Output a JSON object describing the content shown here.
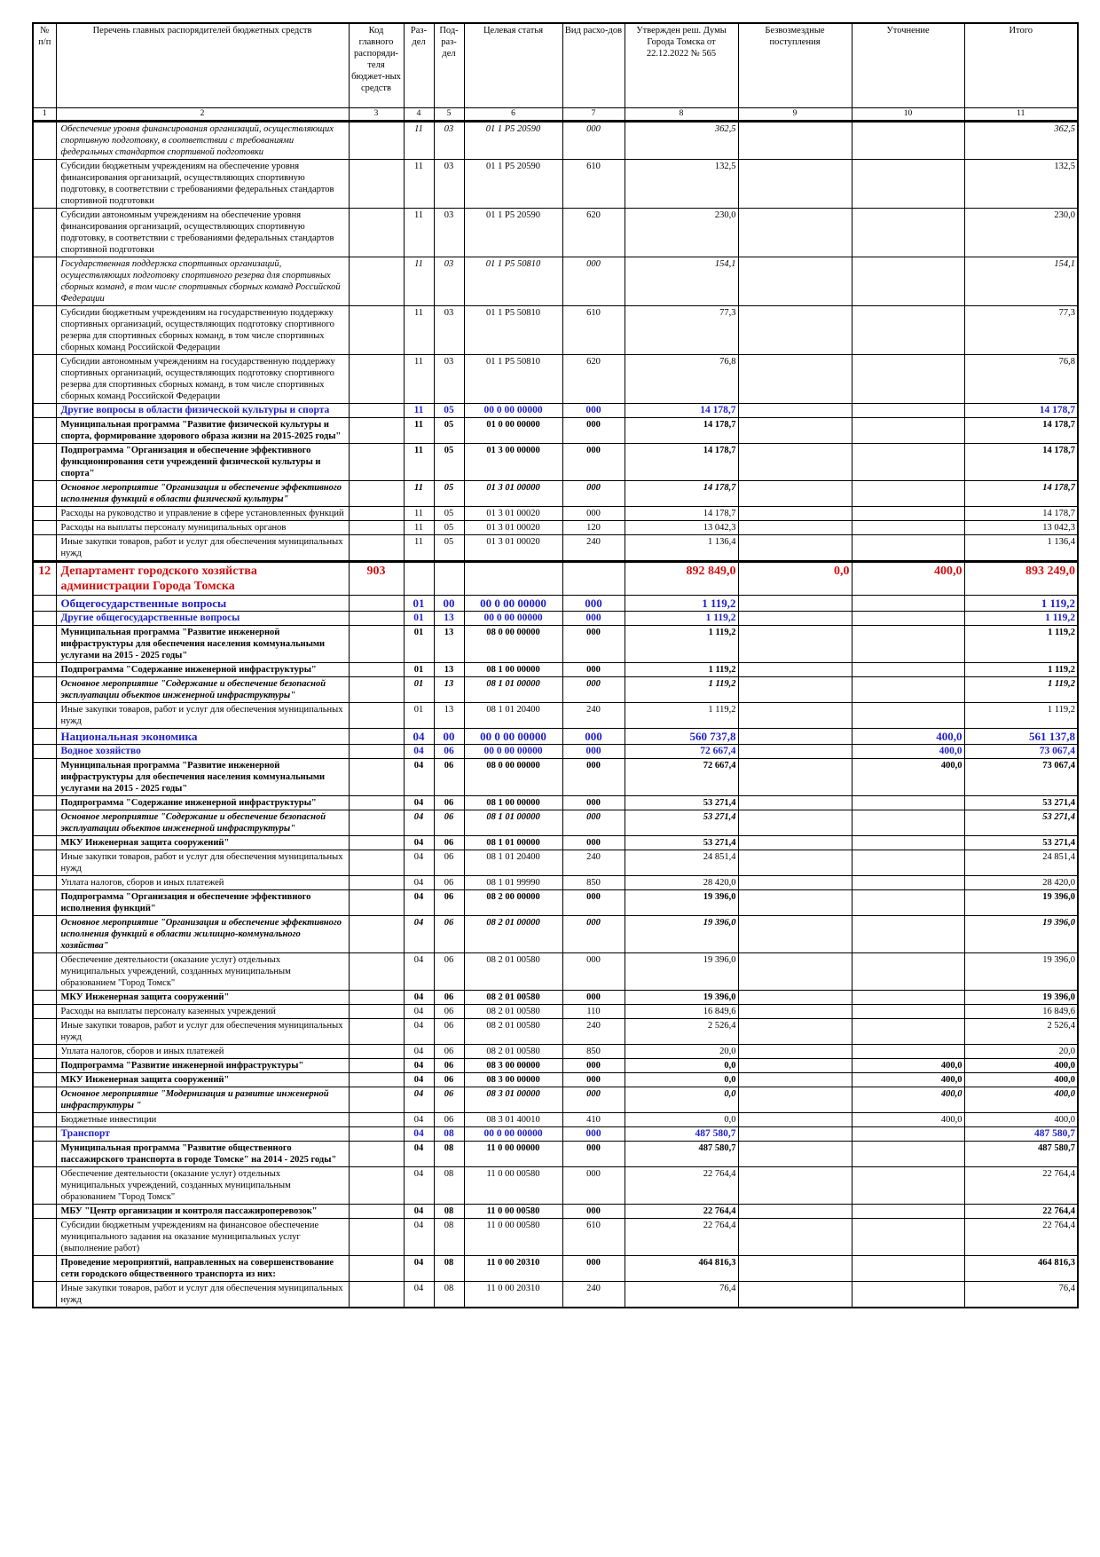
{
  "table": {
    "header": [
      "№ п/п",
      "Перечень главных распорядителей бюджетных средств",
      "Код главного распоряди-теля бюджет-ных средств",
      "Раз-дел",
      "Под-раз-дел",
      "Целевая статья",
      "Вид расхо-дов",
      "Утвержден реш. Думы Города Томска от 22.12.2022 № 565",
      "Безвозмездные поступления",
      "Уточнение",
      "Итого"
    ],
    "numbers": [
      "1",
      "2",
      "3",
      "4",
      "5",
      "6",
      "7",
      "8",
      "9",
      "10",
      "11"
    ],
    "rows": [
      {
        "style": "italic",
        "cells": [
          null,
          "Обеспечение уровня финансирования организаций, осуществляющих спортивную подготовку, в соответствии с требованиями федеральных стандартов спортивной подготовки",
          null,
          "11",
          "03",
          "01 1 P5 20590",
          "000",
          "362,5",
          null,
          null,
          "362,5"
        ]
      },
      {
        "cells": [
          null,
          "Субсидии бюджетным учреждениям на обеспечение уровня финансирования организаций, осуществляющих спортивную подготовку, в соответствии с требованиями федеральных стандартов спортивной подготовки",
          null,
          "11",
          "03",
          "01 1 P5 20590",
          "610",
          "132,5",
          null,
          null,
          "132,5"
        ]
      },
      {
        "cells": [
          null,
          "Субсидии автономным учреждениям на обеспечение уровня финансирования организаций, осуществляющих спортивную подготовку, в соответствии с требованиями федеральных стандартов спортивной подготовки",
          null,
          "11",
          "03",
          "01 1 P5 20590",
          "620",
          "230,0",
          null,
          null,
          "230,0"
        ]
      },
      {
        "style": "italic",
        "cells": [
          null,
          "Государственная поддержка спортивных организаций, осуществляющих подготовку спортивного резерва для спортивных сборных команд, в том числе спортивных сборных команд Российской Федерации",
          null,
          "11",
          "03",
          "01 1 P5 50810",
          "000",
          "154,1",
          null,
          null,
          "154,1"
        ]
      },
      {
        "cells": [
          null,
          "Субсидии бюджетным учреждениям на государственную поддержку спортивных организаций, осуществляющих подготовку спортивного резерва для спортивных сборных команд, в том числе спортивных сборных команд Российской Федерации",
          null,
          "11",
          "03",
          "01 1 P5 50810",
          "610",
          "77,3",
          null,
          null,
          "77,3"
        ]
      },
      {
        "cells": [
          null,
          "Субсидии автономным учреждениям на государственную поддержку спортивных организаций, осуществляющих подготовку спортивного резерва для спортивных сборных команд, в том числе спортивных сборных команд Российской Федерации",
          null,
          "11",
          "03",
          "01 1 P5 50810",
          "620",
          "76,8",
          null,
          null,
          "76,8"
        ]
      },
      {
        "style": "blue",
        "cells": [
          null,
          "Другие вопросы в области физической культуры и спорта",
          null,
          "11",
          "05",
          "00 0 00 00000",
          "000",
          "14 178,7",
          null,
          null,
          "14 178,7"
        ]
      },
      {
        "style": "bold",
        "cells": [
          null,
          "Муниципальная программа \"Развитие физической культуры и спорта, формирование здорового образа жизни на 2015-2025 годы\"",
          null,
          "11",
          "05",
          "01 0 00 00000",
          "000",
          "14 178,7",
          null,
          null,
          "14 178,7"
        ]
      },
      {
        "style": "bold",
        "cells": [
          null,
          "Подпрограмма \"Организация и обеспечение эффективного функционирования сети учреждений физической культуры и спорта\"",
          null,
          "11",
          "05",
          "01 3 00 00000",
          "000",
          "14 178,7",
          null,
          null,
          "14 178,7"
        ]
      },
      {
        "style": "bold-italic",
        "cells": [
          null,
          "Основное мероприятие \"Организация и обеспечение эффективного исполнения функций в области физической культуры\"",
          null,
          "11",
          "05",
          "01 3 01 00000",
          "000",
          "14 178,7",
          null,
          null,
          "14 178,7"
        ]
      },
      {
        "cells": [
          null,
          "Расходы на руководство и управление в сфере установленных функций",
          null,
          "11",
          "05",
          "01 3 01 00020",
          "000",
          "14 178,7",
          null,
          null,
          "14 178,7"
        ]
      },
      {
        "cells": [
          null,
          "Расходы на выплаты персоналу муниципальных органов",
          null,
          "11",
          "05",
          "01 3 01 00020",
          "120",
          "13 042,3",
          null,
          null,
          "13 042,3"
        ]
      },
      {
        "cells": [
          null,
          "Иные закупки товаров, работ и услуг для обеспечения муниципальных нужд",
          null,
          "11",
          "05",
          "01 3 01 00020",
          "240",
          "1 136,4",
          null,
          null,
          "1 136,4"
        ]
      },
      {
        "style": "red",
        "cells": [
          "12",
          "Департамент городского хозяйства администрации Города Томска",
          "903",
          null,
          null,
          null,
          null,
          "892 849,0",
          "0,0",
          "400,0",
          "893 249,0"
        ]
      },
      {
        "style": "blue-large",
        "cells": [
          null,
          "Общегосударственные вопросы",
          null,
          "01",
          "00",
          "00 0 00 00000",
          "000",
          "1 119,2",
          null,
          null,
          "1 119,2"
        ]
      },
      {
        "style": "blue",
        "cells": [
          null,
          "Другие общегосударственные вопросы",
          null,
          "01",
          "13",
          "00 0 00 00000",
          "000",
          "1 119,2",
          null,
          null,
          "1 119,2"
        ]
      },
      {
        "style": "bold",
        "cells": [
          null,
          "Муниципальная программа \"Развитие инженерной инфраструктуры для обеспечения населения коммунальными услугами на 2015 - 2025 годы\"",
          null,
          "01",
          "13",
          "08 0 00 00000",
          "000",
          "1 119,2",
          null,
          null,
          "1 119,2"
        ]
      },
      {
        "style": "bold",
        "cells": [
          null,
          "Подпрограмма \"Содержание инженерной инфраструктуры\"",
          null,
          "01",
          "13",
          "08 1 00 00000",
          "000",
          "1 119,2",
          null,
          null,
          "1 119,2"
        ]
      },
      {
        "style": "bold-italic",
        "cells": [
          null,
          "Основное мероприятие \"Содержание и обеспечение безопасной эксплуатации объектов инженерной инфраструктуры\"",
          null,
          "01",
          "13",
          "08 1 01 00000",
          "000",
          "1 119,2",
          null,
          null,
          "1 119,2"
        ]
      },
      {
        "cells": [
          null,
          "Иные закупки товаров, работ и услуг для обеспечения муниципальных нужд",
          null,
          "01",
          "13",
          "08 1 01 20400",
          "240",
          "1 119,2",
          null,
          null,
          "1 119,2"
        ]
      },
      {
        "style": "blue-large",
        "cells": [
          null,
          "Национальная экономика",
          null,
          "04",
          "00",
          "00 0 00 00000",
          "000",
          "560 737,8",
          null,
          "400,0",
          "561 137,8"
        ]
      },
      {
        "style": "blue",
        "cells": [
          null,
          "Водное хозяйство",
          null,
          "04",
          "06",
          "00 0 00 00000",
          "000",
          "72 667,4",
          null,
          "400,0",
          "73 067,4"
        ]
      },
      {
        "style": "bold",
        "cells": [
          null,
          "Муниципальная программа \"Развитие инженерной инфраструктуры для обеспечения населения коммунальными услугами на 2015 - 2025 годы\"",
          null,
          "04",
          "06",
          "08 0 00 00000",
          "000",
          "72 667,4",
          null,
          "400,0",
          "73 067,4"
        ]
      },
      {
        "style": "bold",
        "cells": [
          null,
          "Подпрограмма \"Содержание инженерной инфраструктуры\"",
          null,
          "04",
          "06",
          "08 1 00 00000",
          "000",
          "53 271,4",
          null,
          null,
          "53 271,4"
        ]
      },
      {
        "style": "bold-italic",
        "cells": [
          null,
          "Основное мероприятие \"Содержание и обеспечение безопасной эксплуатации объектов инженерной инфраструктуры\"",
          null,
          "04",
          "06",
          "08 1 01 00000",
          "000",
          "53 271,4",
          null,
          null,
          "53 271,4"
        ]
      },
      {
        "style": "bold",
        "cells": [
          null,
          "МКУ Инженерная защита сооружений\"",
          null,
          "04",
          "06",
          "08 1 01 00000",
          "000",
          "53 271,4",
          null,
          null,
          "53 271,4"
        ]
      },
      {
        "cells": [
          null,
          "Иные закупки товаров, работ и услуг для обеспечения муниципальных нужд",
          null,
          "04",
          "06",
          "08 1 01 20400",
          "240",
          "24 851,4",
          null,
          null,
          "24 851,4"
        ]
      },
      {
        "cells": [
          null,
          "Уплата налогов, сборов и иных платежей",
          null,
          "04",
          "06",
          "08 1 01 99990",
          "850",
          "28 420,0",
          null,
          null,
          "28 420,0"
        ]
      },
      {
        "style": "bold",
        "cells": [
          null,
          "Подпрограмма \"Организация и обеспечение эффективного исполнения функций\"",
          null,
          "04",
          "06",
          "08 2 00 00000",
          "000",
          "19 396,0",
          null,
          null,
          "19 396,0"
        ]
      },
      {
        "style": "bold-italic",
        "cells": [
          null,
          "Основное мероприятие \"Организация и обеспечение эффективного исполнения функций в области жилищно-коммунального хозяйства\"",
          null,
          "04",
          "06",
          "08 2 01 00000",
          "000",
          "19 396,0",
          null,
          null,
          "19 396,0"
        ]
      },
      {
        "cells": [
          null,
          "Обеспечение деятельности (оказание услуг) отдельных муниципальных учреждений, созданных муниципальным образованием \"Город Томск\"",
          null,
          "04",
          "06",
          "08 2 01 00580",
          "000",
          "19 396,0",
          null,
          null,
          "19 396,0"
        ]
      },
      {
        "style": "bold",
        "cells": [
          null,
          "МКУ Инженерная защита сооружений\"",
          null,
          "04",
          "06",
          "08 2 01 00580",
          "000",
          "19 396,0",
          null,
          null,
          "19 396,0"
        ]
      },
      {
        "cells": [
          null,
          "Расходы на выплаты персоналу казенных учреждений",
          null,
          "04",
          "06",
          "08 2 01 00580",
          "110",
          "16 849,6",
          null,
          null,
          "16 849,6"
        ]
      },
      {
        "cells": [
          null,
          "Иные закупки товаров, работ и услуг для обеспечения муниципальных нужд",
          null,
          "04",
          "06",
          "08 2 01 00580",
          "240",
          "2 526,4",
          null,
          null,
          "2 526,4"
        ]
      },
      {
        "cells": [
          null,
          "Уплата налогов, сборов и иных платежей",
          null,
          "04",
          "06",
          "08 2 01 00580",
          "850",
          "20,0",
          null,
          null,
          "20,0"
        ]
      },
      {
        "style": "bold",
        "cells": [
          null,
          "Подпрограмма \"Развитие инженерной инфраструктуры\"",
          null,
          "04",
          "06",
          "08 3 00 00000",
          "000",
          "0,0",
          null,
          "400,0",
          "400,0"
        ]
      },
      {
        "style": "bold",
        "cells": [
          null,
          "МКУ Инженерная защита сооружений\"",
          null,
          "04",
          "06",
          "08 3 00 00000",
          "000",
          "0,0",
          null,
          "400,0",
          "400,0"
        ]
      },
      {
        "style": "bold-italic",
        "cells": [
          null,
          "Основное мероприятие \"Модернизация и развитие инженерной инфраструктуры \"",
          null,
          "04",
          "06",
          "08 3 01 00000",
          "000",
          "0,0",
          null,
          "400,0",
          "400,0"
        ]
      },
      {
        "cells": [
          null,
          "Бюджетные инвестиции",
          null,
          "04",
          "06",
          "08 3 01 40010",
          "410",
          "0,0",
          null,
          "400,0",
          "400,0"
        ]
      },
      {
        "style": "blue",
        "cells": [
          null,
          "Транспорт",
          null,
          "04",
          "08",
          "00 0 00 00000",
          "000",
          "487 580,7",
          null,
          null,
          "487 580,7"
        ]
      },
      {
        "style": "bold",
        "cells": [
          null,
          "Муниципальная программа \"Развитие общественного пассажирского транспорта в городе Томске\" на 2014 - 2025 годы\"",
          null,
          "04",
          "08",
          "11 0 00 00000",
          "000",
          "487 580,7",
          null,
          null,
          "487 580,7"
        ]
      },
      {
        "cells": [
          null,
          "Обеспечение деятельности (оказание услуг) отдельных муниципальных учреждений, созданных муниципальным образованием \"Город Томск\"",
          null,
          "04",
          "08",
          "11 0 00 00580",
          "000",
          "22 764,4",
          null,
          null,
          "22 764,4"
        ]
      },
      {
        "style": "bold",
        "cells": [
          null,
          "МБУ \"Центр организации и контроля пассажироперевозок\"",
          null,
          "04",
          "08",
          "11 0 00 00580",
          "000",
          "22 764,4",
          null,
          null,
          "22 764,4"
        ]
      },
      {
        "cells": [
          null,
          "Субсидии бюджетным учреждениям на финансовое обеспечение муниципального задания на оказание муниципальных услуг (выполнение работ)",
          null,
          "04",
          "08",
          "11 0 00 00580",
          "610",
          "22 764,4",
          null,
          null,
          "22 764,4"
        ]
      },
      {
        "style": "bold",
        "cells": [
          null,
          "Проведение мероприятий, направленных на совершенствование сети городского общественного транспорта из них:",
          null,
          "04",
          "08",
          "11 0 00 20310",
          "000",
          "464 816,3",
          null,
          null,
          "464 816,3"
        ]
      },
      {
        "cells": [
          null,
          "Иные закупки товаров, работ и услуг для обеспечения муниципальных нужд",
          null,
          "04",
          "08",
          "11 0 00 20310",
          "240",
          "76,4",
          null,
          null,
          "76,4"
        ]
      }
    ]
  }
}
